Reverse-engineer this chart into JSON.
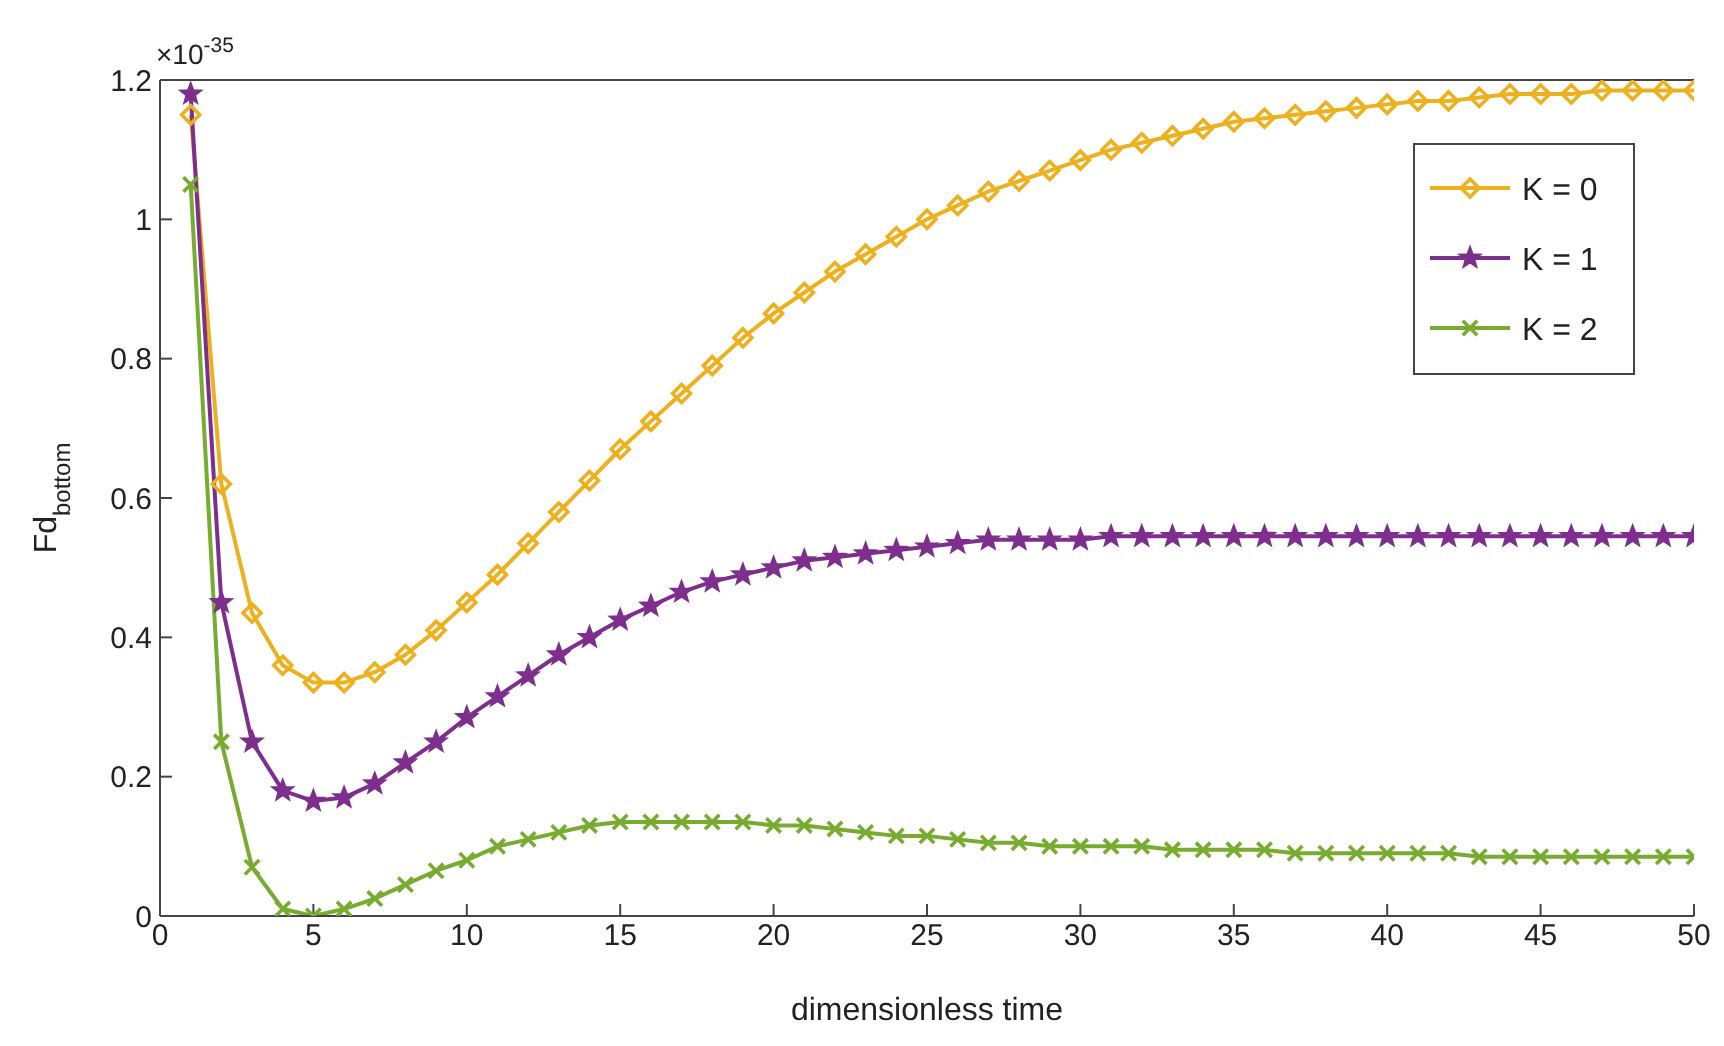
{
  "chart_data": {
    "type": "line",
    "xlabel": "dimensionless time",
    "ylabel": "Fd$_{bottom}$",
    "annotations": [
      "×10$^{-35}$"
    ],
    "x": [
      1,
      2,
      3,
      4,
      5,
      6,
      7,
      8,
      9,
      10,
      11,
      12,
      13,
      14,
      15,
      16,
      17,
      18,
      19,
      20,
      21,
      22,
      23,
      24,
      25,
      26,
      27,
      28,
      29,
      30,
      31,
      32,
      33,
      34,
      35,
      36,
      37,
      38,
      39,
      40,
      41,
      42,
      43,
      44,
      45,
      46,
      47,
      48,
      49,
      50
    ],
    "series": [
      {
        "name": "K = 0",
        "color": "#edb120",
        "marker": "diamond",
        "values": [
          1.15,
          0.62,
          0.435,
          0.36,
          0.335,
          0.335,
          0.35,
          0.375,
          0.41,
          0.45,
          0.49,
          0.535,
          0.58,
          0.625,
          0.67,
          0.71,
          0.75,
          0.79,
          0.83,
          0.865,
          0.895,
          0.925,
          0.95,
          0.975,
          1.0,
          1.02,
          1.04,
          1.055,
          1.07,
          1.085,
          1.1,
          1.11,
          1.12,
          1.13,
          1.14,
          1.145,
          1.15,
          1.155,
          1.16,
          1.165,
          1.17,
          1.17,
          1.175,
          1.18,
          1.18,
          1.18,
          1.185,
          1.185,
          1.185,
          1.185
        ]
      },
      {
        "name": "K = 1",
        "color": "#7e2f8e",
        "marker": "star",
        "values": [
          1.18,
          0.45,
          0.25,
          0.18,
          0.165,
          0.17,
          0.19,
          0.22,
          0.25,
          0.285,
          0.315,
          0.345,
          0.375,
          0.4,
          0.425,
          0.445,
          0.465,
          0.48,
          0.49,
          0.5,
          0.51,
          0.515,
          0.52,
          0.525,
          0.53,
          0.535,
          0.54,
          0.54,
          0.54,
          0.54,
          0.545,
          0.545,
          0.545,
          0.545,
          0.545,
          0.545,
          0.545,
          0.545,
          0.545,
          0.545,
          0.545,
          0.545,
          0.545,
          0.545,
          0.545,
          0.545,
          0.545,
          0.545,
          0.545,
          0.545
        ]
      },
      {
        "name": "K = 2",
        "color": "#77ac30",
        "marker": "cross",
        "values": [
          1.05,
          0.25,
          0.07,
          0.01,
          0.0,
          0.01,
          0.025,
          0.045,
          0.065,
          0.08,
          0.1,
          0.11,
          0.12,
          0.13,
          0.135,
          0.135,
          0.135,
          0.135,
          0.135,
          0.13,
          0.13,
          0.125,
          0.12,
          0.115,
          0.115,
          0.11,
          0.105,
          0.105,
          0.1,
          0.1,
          0.1,
          0.1,
          0.095,
          0.095,
          0.095,
          0.095,
          0.09,
          0.09,
          0.09,
          0.09,
          0.09,
          0.09,
          0.085,
          0.085,
          0.085,
          0.085,
          0.085,
          0.085,
          0.085,
          0.085
        ]
      }
    ],
    "xlim": [
      0,
      50
    ],
    "xticks": [
      0,
      5,
      10,
      15,
      20,
      25,
      30,
      35,
      40,
      45,
      50
    ],
    "ylim": [
      0,
      1.2
    ],
    "yticks": [
      0,
      0.2,
      0.4,
      0.6,
      0.8,
      1,
      1.2
    ],
    "grid": false,
    "legend": "top right",
    "line_style": "solid"
  }
}
